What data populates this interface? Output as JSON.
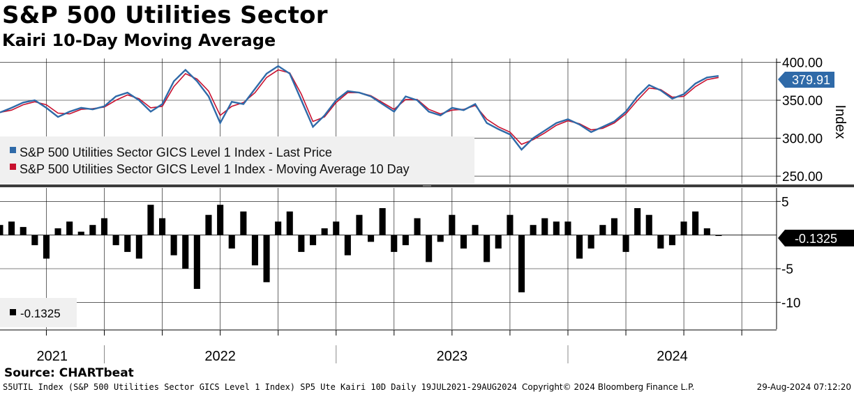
{
  "title": "S&P 500 Utilities Sector",
  "subtitle": "Kairi 10-Day Moving Average",
  "source": "Source: CHARTbeat",
  "footer": {
    "left": "S5UTIL Index (S&P 500 Utilities Sector GICS Level 1 Index) SP5 Ute Kairi 10D  Daily 19JUL2021-29AUG2024",
    "center": "Copyright© 2024 Bloomberg Finance L.P.",
    "right": "29-Aug-2024 07:12:20"
  },
  "colors": {
    "price": "#2f6aa8",
    "ma": "#c8102e",
    "bars": "#000000",
    "label_bg": "#2f6aa8"
  },
  "chart_data": [
    {
      "type": "line",
      "title": "S&P 500 Utilities Sector",
      "ylabel": "Index",
      "ylim": [
        240,
        405
      ],
      "yticks": [
        "400.00",
        "350.00",
        "300.00",
        "250.00"
      ],
      "ytick_values": [
        400,
        350,
        300,
        250
      ],
      "xlim": [
        2021.55,
        2024.9
      ],
      "years": [
        "2021",
        "2022",
        "2023",
        "2024"
      ],
      "last_value_label": "379.91",
      "legend": [
        "S&P 500 Utilities Sector GICS Level 1 Index - Last Price",
        "S&P 500 Utilities Sector GICS Level 1 Index - Moving Average 10 Day"
      ],
      "x": [
        2021.55,
        2021.6,
        2021.65,
        2021.7,
        2021.75,
        2021.8,
        2021.85,
        2021.9,
        2021.95,
        2022.0,
        2022.05,
        2022.1,
        2022.15,
        2022.2,
        2022.25,
        2022.3,
        2022.35,
        2022.4,
        2022.45,
        2022.5,
        2022.55,
        2022.6,
        2022.65,
        2022.7,
        2022.75,
        2022.8,
        2022.85,
        2022.9,
        2022.95,
        2023.0,
        2023.05,
        2023.1,
        2023.15,
        2023.2,
        2023.25,
        2023.3,
        2023.35,
        2023.4,
        2023.45,
        2023.5,
        2023.55,
        2023.6,
        2023.65,
        2023.7,
        2023.75,
        2023.8,
        2023.85,
        2023.9,
        2023.95,
        2024.0,
        2024.05,
        2024.1,
        2024.15,
        2024.2,
        2024.25,
        2024.3,
        2024.35,
        2024.4,
        2024.45,
        2024.5,
        2024.55,
        2024.6,
        2024.65
      ],
      "series": [
        {
          "name": "Last Price",
          "values": [
            334,
            340,
            347,
            350,
            340,
            328,
            335,
            340,
            338,
            342,
            355,
            360,
            350,
            335,
            345,
            375,
            390,
            375,
            355,
            320,
            348,
            345,
            365,
            385,
            395,
            385,
            350,
            315,
            330,
            350,
            362,
            360,
            355,
            345,
            335,
            355,
            350,
            335,
            330,
            340,
            337,
            345,
            320,
            312,
            305,
            285,
            300,
            310,
            320,
            325,
            318,
            308,
            315,
            322,
            335,
            355,
            370,
            363,
            352,
            358,
            372,
            380,
            382
          ]
        },
        {
          "name": "Moving Average 10 Day",
          "values": [
            334,
            337,
            344,
            348,
            344,
            333,
            332,
            338,
            339,
            341,
            350,
            357,
            352,
            340,
            342,
            368,
            385,
            378,
            362,
            330,
            342,
            347,
            360,
            380,
            390,
            386,
            358,
            322,
            328,
            347,
            360,
            360,
            356,
            347,
            338,
            351,
            351,
            338,
            332,
            337,
            338,
            343,
            325,
            315,
            308,
            292,
            298,
            307,
            317,
            323,
            319,
            311,
            313,
            320,
            332,
            350,
            366,
            364,
            354,
            355,
            368,
            377,
            380
          ]
        }
      ]
    },
    {
      "type": "bar",
      "title": "Kairi 10-Day Moving Average",
      "ylim": [
        -14,
        7
      ],
      "yticks": [
        "5",
        "-5",
        "-10"
      ],
      "ytick_values": [
        5,
        -5,
        -10
      ],
      "last_value_label": "-0.1325",
      "legend": [
        "-0.1325"
      ],
      "x": [
        2021.55,
        2021.6,
        2021.65,
        2021.7,
        2021.75,
        2021.8,
        2021.85,
        2021.9,
        2021.95,
        2022.0,
        2022.05,
        2022.1,
        2022.15,
        2022.2,
        2022.25,
        2022.3,
        2022.35,
        2022.4,
        2022.45,
        2022.5,
        2022.55,
        2022.6,
        2022.65,
        2022.7,
        2022.75,
        2022.8,
        2022.85,
        2022.9,
        2022.95,
        2023.0,
        2023.05,
        2023.1,
        2023.15,
        2023.2,
        2023.25,
        2023.3,
        2023.35,
        2023.4,
        2023.45,
        2023.5,
        2023.55,
        2023.6,
        2023.65,
        2023.7,
        2023.75,
        2023.8,
        2023.85,
        2023.9,
        2023.95,
        2024.0,
        2024.05,
        2024.1,
        2024.15,
        2024.2,
        2024.25,
        2024.3,
        2024.35,
        2024.4,
        2024.45,
        2024.5,
        2024.55,
        2024.6,
        2024.65
      ],
      "values": [
        1.5,
        2.0,
        1.2,
        -1.5,
        -3.5,
        1.0,
        2.0,
        0.5,
        1.5,
        2.5,
        -1.5,
        -2.5,
        -3.5,
        4.5,
        2.5,
        -3.0,
        -5.0,
        -8.0,
        3.0,
        4.5,
        -2.0,
        3.5,
        -4.5,
        -7.0,
        2.0,
        3.5,
        -2.5,
        -1.5,
        1.0,
        2.0,
        -3.0,
        3.0,
        -1.0,
        4.0,
        -2.5,
        -1.5,
        2.5,
        -4.0,
        -1.0,
        3.0,
        -2.0,
        1.5,
        -4.0,
        -2.0,
        3.0,
        -8.5,
        1.5,
        2.5,
        2.0,
        2.0,
        -3.5,
        -2.0,
        1.5,
        2.5,
        -2.5,
        4.0,
        3.0,
        -2.0,
        -1.5,
        2.0,
        3.5,
        1.0,
        -0.1325
      ]
    }
  ]
}
